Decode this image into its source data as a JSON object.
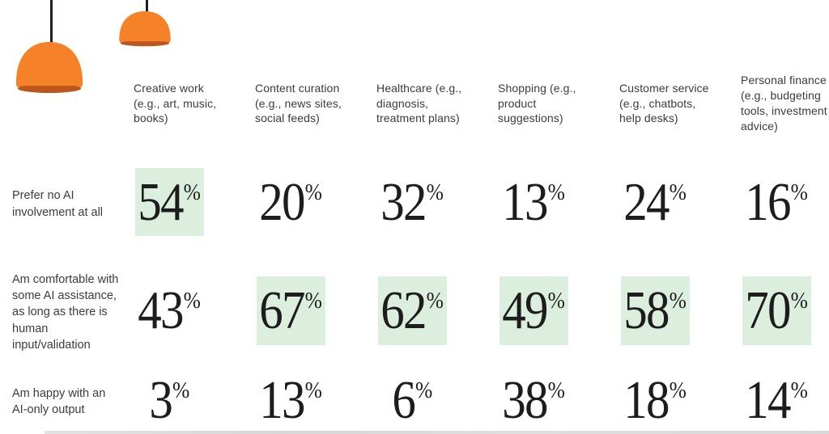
{
  "colors": {
    "highlight": "#dceedd",
    "lamp_orange": "#f58228",
    "lamp_rim": "#bb561d",
    "cord": "#1f1f1f",
    "text": "#3b3b3b",
    "number_text": "#1d1d1d"
  },
  "icons": [
    {
      "name": "pendant-lamp-large-icon"
    },
    {
      "name": "pendant-lamp-small-icon"
    }
  ],
  "chart_data": {
    "type": "table",
    "unit": "%",
    "columns": [
      "Creative work (e.g., art, music, books)",
      "Content curation (e.g., news sites, social feeds)",
      "Healthcare (e.g., diagnosis, treatment plans)",
      "Shopping (e.g., product suggestions)",
      "Customer service (e.g., chatbots, help desks)",
      "Personal finance (e.g., budgeting tools, investment advice)"
    ],
    "rows": [
      {
        "label": "Prefer no AI involvement at all",
        "values": [
          54,
          20,
          32,
          13,
          24,
          16
        ],
        "highlighted": [
          0
        ]
      },
      {
        "label": "Am comfortable with some AI assistance, as long as there is human input/validation",
        "values": [
          43,
          67,
          62,
          49,
          58,
          70
        ],
        "highlighted": [
          1,
          2,
          3,
          4,
          5
        ]
      },
      {
        "label": "Am happy with an AI-only output",
        "values": [
          3,
          13,
          6,
          38,
          18,
          14
        ],
        "highlighted": []
      }
    ]
  }
}
